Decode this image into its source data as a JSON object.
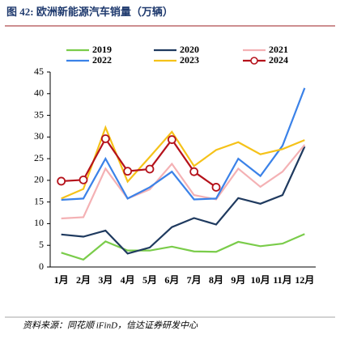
{
  "chart_data": {
    "type": "line",
    "title": "图 42: 欧洲新能源汽车销量（万辆）",
    "source": "资料来源：同花顺 iFinD，信达证券研发中心",
    "categories": [
      "1月",
      "2月",
      "3月",
      "4月",
      "5月",
      "6月",
      "7月",
      "8月",
      "9月",
      "10月",
      "11月",
      "12月"
    ],
    "series": [
      {
        "name": "2019",
        "color": "#7acc4a",
        "values": [
          3.3,
          1.7,
          5.9,
          3.8,
          3.8,
          4.7,
          3.6,
          3.5,
          5.8,
          4.8,
          5.4,
          7.6
        ]
      },
      {
        "name": "2020",
        "color": "#1f3a5f",
        "values": [
          7.5,
          7.0,
          8.4,
          3.1,
          4.5,
          9.2,
          11.3,
          9.8,
          15.9,
          14.6,
          16.6,
          27.8
        ]
      },
      {
        "name": "2021",
        "color": "#f4b1b4",
        "values": [
          11.2,
          11.5,
          22.7,
          15.8,
          17.9,
          23.8,
          16.6,
          15.6,
          22.7,
          18.5,
          22.0,
          28.2
        ]
      },
      {
        "name": "2022",
        "color": "#3b82e8",
        "values": [
          15.5,
          15.8,
          25.0,
          15.8,
          18.4,
          22.0,
          15.6,
          15.8,
          25.0,
          21.0,
          28.0,
          41.3
        ]
      },
      {
        "name": "2023",
        "color": "#f5c219",
        "values": [
          15.8,
          18.0,
          32.2,
          19.7,
          25.4,
          31.2,
          23.3,
          27.0,
          28.8,
          26.0,
          27.2,
          29.3
        ]
      },
      {
        "name": "2024",
        "color": "#b5121b",
        "marker": true,
        "values": [
          19.8,
          20.1,
          29.6,
          22.1,
          22.6,
          29.4,
          22.0,
          18.4,
          null,
          null,
          null,
          null
        ]
      }
    ],
    "ylim": [
      0,
      45
    ],
    "yticks": [
      0,
      5,
      10,
      15,
      20,
      25,
      30,
      35,
      40,
      45
    ],
    "legend": "top"
  }
}
